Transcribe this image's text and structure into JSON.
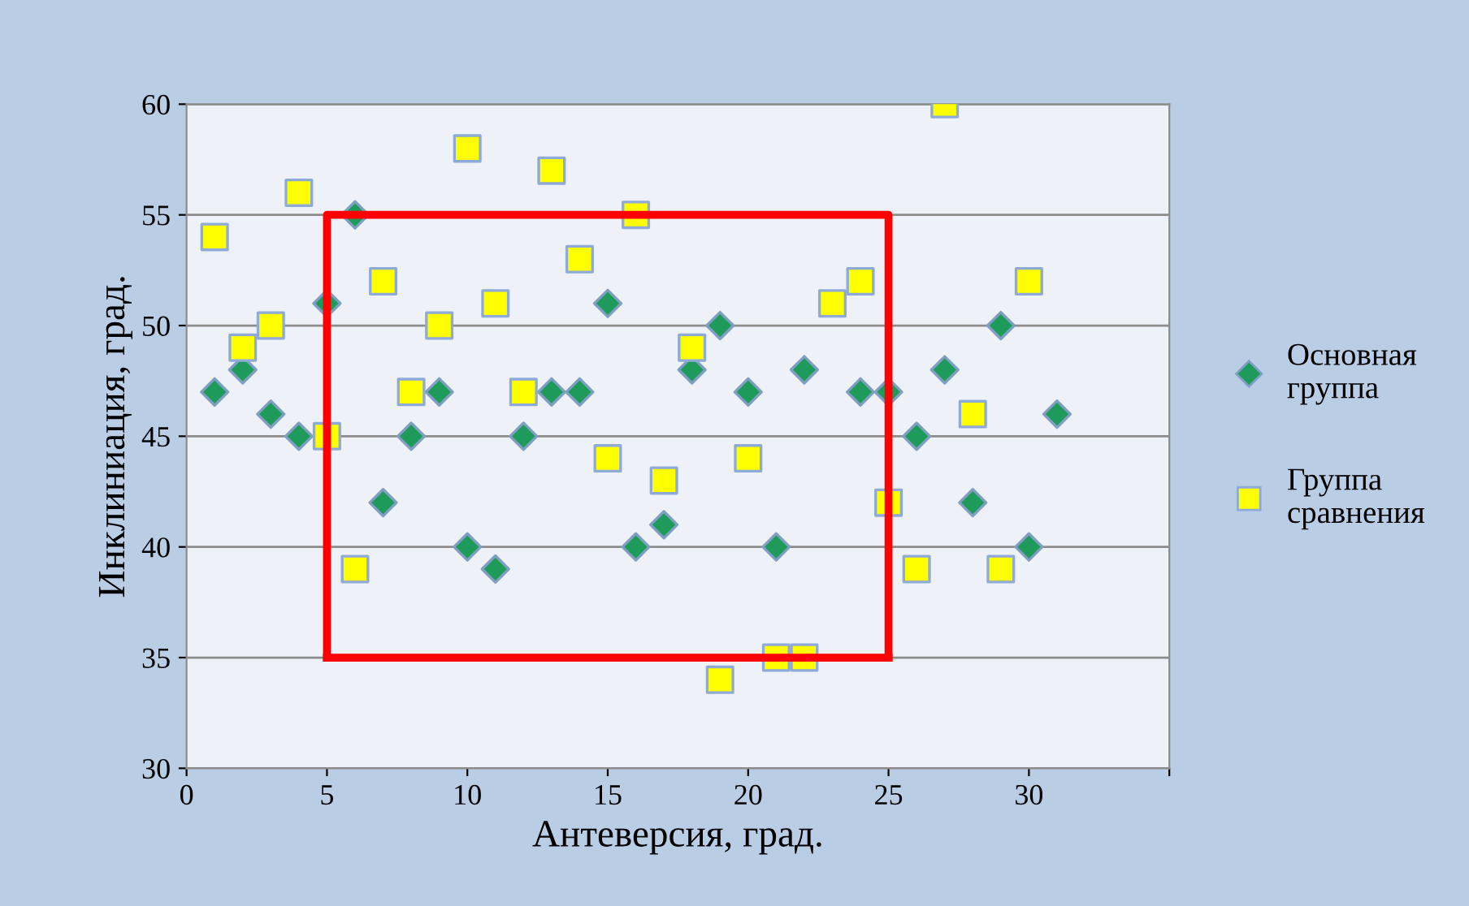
{
  "chart_data": {
    "type": "scatter",
    "xlabel": "Антеверсия, град.",
    "ylabel": "Инклиниация, град.",
    "series": [
      {
        "type": "line",
        "color": "#ff0000",
        "x": [
          5,
          5,
          25,
          25
        ],
        "values": [
          35,
          55,
          55,
          35
        ]
      },
      {
        "type": "line",
        "color": "#ff0000",
        "x": [
          5,
          25
        ],
        "values": [
          35,
          35
        ]
      },
      {
        "name": "Основная\nгруппа",
        "color": "#1e9a5a",
        "marker": "diamond",
        "x": [
          1,
          2,
          3,
          4,
          5,
          6,
          7,
          8,
          9,
          10,
          11,
          12,
          13,
          14,
          15,
          16,
          17,
          18,
          19,
          20,
          21,
          22,
          23,
          24,
          25,
          26,
          27,
          28,
          29,
          30,
          31
        ],
        "values": [
          47,
          48,
          46,
          45,
          51,
          55,
          42,
          45,
          47,
          40,
          39,
          45,
          47,
          47,
          51,
          40,
          41,
          48,
          50,
          47,
          40,
          48,
          null,
          47,
          47,
          45,
          48,
          42,
          50,
          40,
          46
        ]
      },
      {
        "name": "Группа\nсравнения",
        "color": "#ffff00",
        "marker": "square",
        "x": [
          1,
          2,
          3,
          4,
          5,
          6,
          7,
          8,
          9,
          10,
          11,
          12,
          13,
          14,
          15,
          16,
          17,
          18,
          19,
          20,
          21,
          22,
          23,
          24,
          25,
          26,
          27,
          28,
          29,
          30
        ],
        "values": [
          54,
          49,
          50,
          56,
          45,
          39,
          52,
          47,
          50,
          58,
          51,
          47,
          57,
          53,
          44,
          55,
          43,
          49,
          34,
          44,
          35,
          35,
          51,
          52,
          42,
          39,
          60,
          46,
          39,
          52
        ]
      }
    ],
    "xlim": [
      0,
      35
    ],
    "xticks": [
      0,
      5,
      10,
      15,
      20,
      25,
      30,
      {
        "value": 35,
        "label": null
      }
    ],
    "ylim": [
      30,
      60
    ],
    "yticks": [
      30,
      35,
      40,
      45,
      50,
      55,
      60
    ],
    "grid": "y",
    "legend": "right"
  }
}
